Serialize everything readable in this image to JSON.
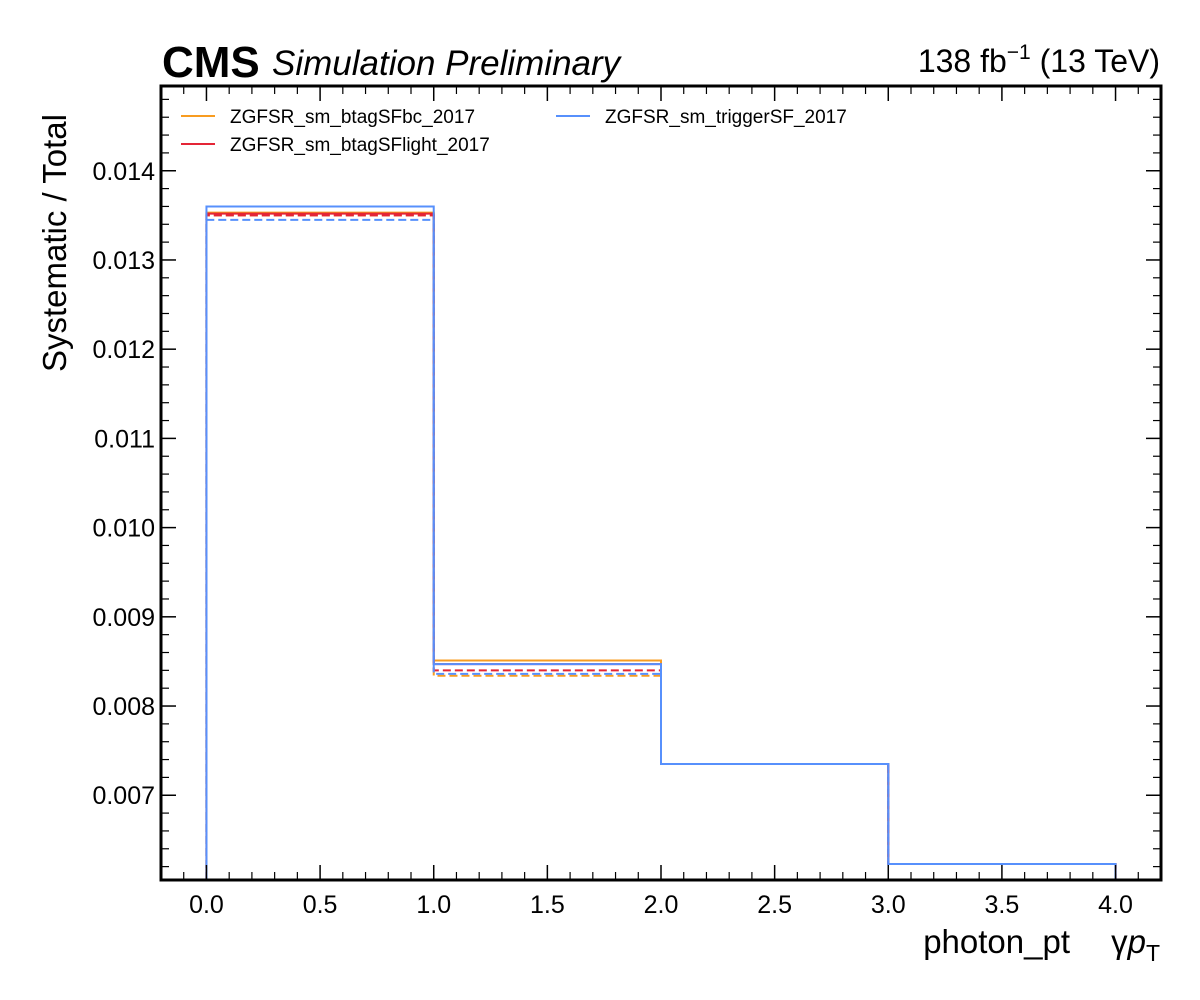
{
  "header": {
    "experiment": "CMS",
    "status": "Simulation Preliminary",
    "lumi_value": "138 fb",
    "lumi_exp": "−1",
    "energy": " (13 TeV)"
  },
  "chart_data": {
    "type": "line",
    "drawstyle": "step",
    "xlabel": "photon_pt",
    "xlabel_symbol_prefix": "γ",
    "xlabel_symbol_var": "p",
    "xlabel_symbol_sub": "T",
    "ylabel": "Systematic / Total",
    "xlim": [
      -0.2,
      4.2
    ],
    "ylim": [
      0.00605,
      0.01495
    ],
    "xticks": [
      "0.0",
      "0.5",
      "1.0",
      "1.5",
      "2.0",
      "2.5",
      "3.0",
      "3.5",
      "4.0"
    ],
    "yticks": [
      "0.007",
      "0.008",
      "0.009",
      "0.010",
      "0.011",
      "0.012",
      "0.013",
      "0.014"
    ],
    "bin_edges": [
      0,
      1,
      2,
      3,
      4
    ],
    "legend_position": "top-left",
    "legend_columns": 2,
    "series": [
      {
        "name": "ZGFSR_sm_btagSFbc_2017",
        "color": "#f89c20",
        "up": [
          0.01353,
          0.00851,
          0.00735,
          0.00623
        ],
        "down": [
          0.0135,
          0.00834,
          0.00735,
          0.00623
        ]
      },
      {
        "name": "ZGFSR_sm_btagSFlight_2017",
        "color": "#e42536",
        "up": [
          0.01352,
          0.00847,
          0.00735,
          0.00623
        ],
        "down": [
          0.0135,
          0.0084,
          0.00735,
          0.00623
        ]
      },
      {
        "name": "ZGFSR_sm_triggerSF_2017",
        "color": "#5790fc",
        "up": [
          0.0136,
          0.00847,
          0.00735,
          0.00623
        ],
        "down": [
          0.01345,
          0.00836,
          0.00735,
          0.00623
        ]
      }
    ]
  }
}
